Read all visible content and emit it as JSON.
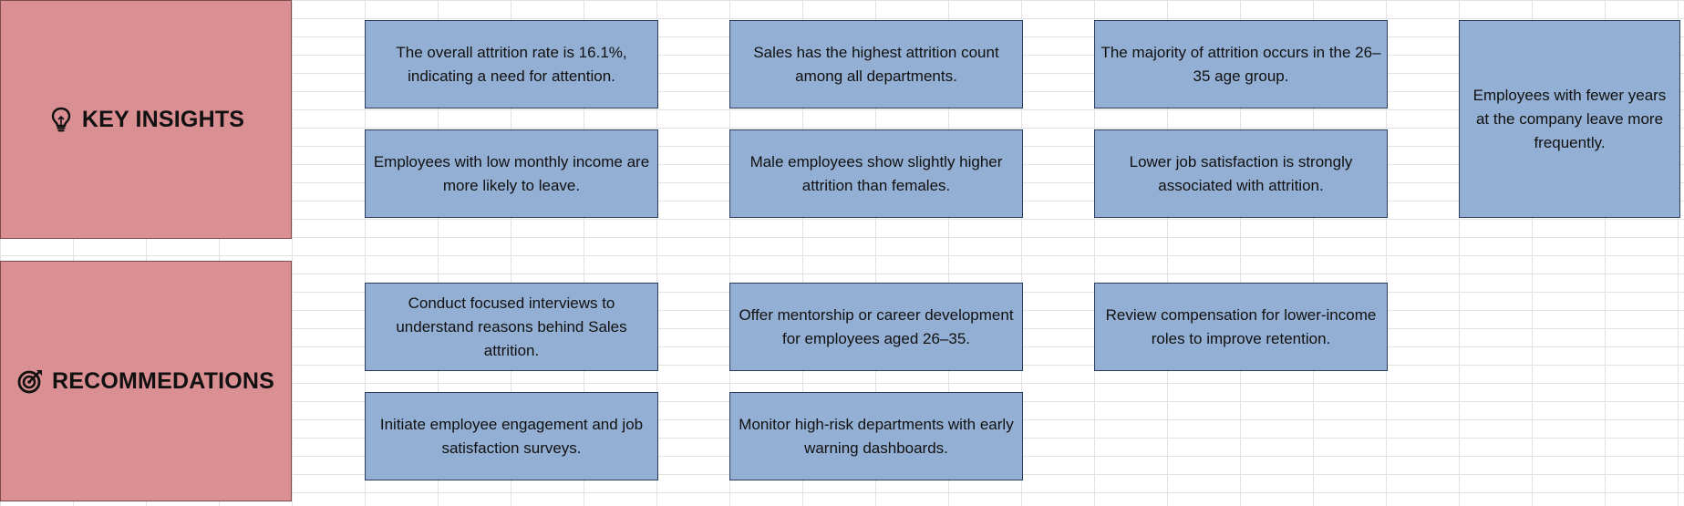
{
  "sections": {
    "insights": {
      "title": "KEY INSIGHTS",
      "icon": "lightbulb-icon",
      "header_color": "#da8f93",
      "cards": [
        "The overall attrition rate is 16.1%, indicating a need for attention.",
        "Sales has the highest attrition count among all departments.",
        "The majority of attrition occurs in the 26–35 age group.",
        "Employees with fewer years at the company leave more frequently.",
        "Employees with low monthly income are more likely to leave.",
        "Male employees show slightly higher attrition than females.",
        "Lower job satisfaction is strongly associated with attrition."
      ]
    },
    "recommendations": {
      "title": "RECOMMEDATIONS",
      "icon": "target-icon",
      "header_color": "#da8f93",
      "cards": [
        "Conduct focused interviews to understand reasons behind Sales attrition.",
        "Offer mentorship or career development for employees aged 26–35.",
        "Review compensation for lower-income roles to improve retention.",
        "Initiate employee engagement and job satisfaction surveys.",
        "Monitor high-risk departments with early warning dashboards."
      ]
    }
  },
  "colors": {
    "card_fill": "#93afd3",
    "card_border": "#2b3d57",
    "gridline": "#e2e2e2"
  }
}
